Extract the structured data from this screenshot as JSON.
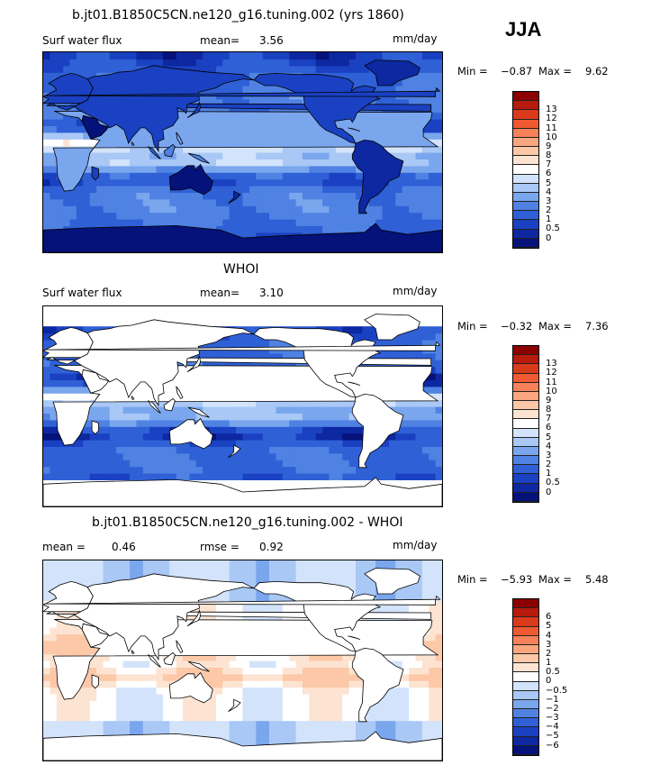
{
  "season_label": "JJA",
  "panels": [
    {
      "id": "model",
      "title": "b.jt01.B1850C5CN.ne120_g16.tuning.002 (yrs 1860)",
      "left_label": "Surf water flux",
      "mid_label": "mean=",
      "mid_value": "3.56",
      "units": "mm/day",
      "min_text": "Min =",
      "min_value": "−0.87",
      "max_text": "Max =",
      "max_value": "9.62",
      "field": "model",
      "colorbar": {
        "colors": [
          "#8b0000",
          "#b81a0b",
          "#d83a1a",
          "#ef5a32",
          "#f5825a",
          "#faa77f",
          "#fcc8a8",
          "#fde4d2",
          "#ffffff",
          "#d2e3fb",
          "#a9c8f6",
          "#7aa6ee",
          "#4f82e2",
          "#2f60d6",
          "#1a41c2",
          "#0d28a0",
          "#05127a"
        ],
        "labels": [
          "13",
          "12",
          "11",
          "10",
          "9",
          "8",
          "7",
          "6",
          "5",
          "4",
          "3",
          "2",
          "1",
          "0.5",
          "0"
        ]
      }
    },
    {
      "id": "obs",
      "title": "WHOI",
      "left_label": "Surf water flux",
      "mid_label": "mean=",
      "mid_value": "3.10",
      "units": "mm/day",
      "min_text": "Min =",
      "min_value": "−0.32",
      "max_text": "Max =",
      "max_value": "7.36",
      "field": "obs",
      "colorbar": {
        "colors": [
          "#8b0000",
          "#b81a0b",
          "#d83a1a",
          "#ef5a32",
          "#f5825a",
          "#faa77f",
          "#fcc8a8",
          "#fde4d2",
          "#ffffff",
          "#d2e3fb",
          "#a9c8f6",
          "#7aa6ee",
          "#4f82e2",
          "#2f60d6",
          "#1a41c2",
          "#0d28a0",
          "#05127a"
        ],
        "labels": [
          "13",
          "12",
          "11",
          "10",
          "9",
          "8",
          "7",
          "6",
          "5",
          "4",
          "3",
          "2",
          "1",
          "0.5",
          "0"
        ]
      }
    },
    {
      "id": "diff",
      "title": "b.jt01.B1850C5CN.ne120_g16.tuning.002 - WHOI",
      "left_label": "mean =",
      "left_value": "0.46",
      "mid_label": "rmse =",
      "mid_value": "0.92",
      "units": "mm/day",
      "min_text": "Min =",
      "min_value": "−5.93",
      "max_text": "Max =",
      "max_value": "5.48",
      "field": "diff",
      "colorbar": {
        "colors": [
          "#8b0000",
          "#b81a0b",
          "#d83a1a",
          "#ef5a32",
          "#f5825a",
          "#faa77f",
          "#fcc8a8",
          "#fde4d2",
          "#ffffff",
          "#d2e3fb",
          "#a9c8f6",
          "#7aa6ee",
          "#4f82e2",
          "#2f60d6",
          "#1a41c2",
          "#0d28a0",
          "#05127a"
        ],
        "labels": [
          "6",
          "5",
          "4",
          "3",
          "2",
          "1",
          "0.5",
          "0",
          "−0.5",
          "−1",
          "−2",
          "−3",
          "−4",
          "−5",
          "−6"
        ]
      }
    }
  ]
}
